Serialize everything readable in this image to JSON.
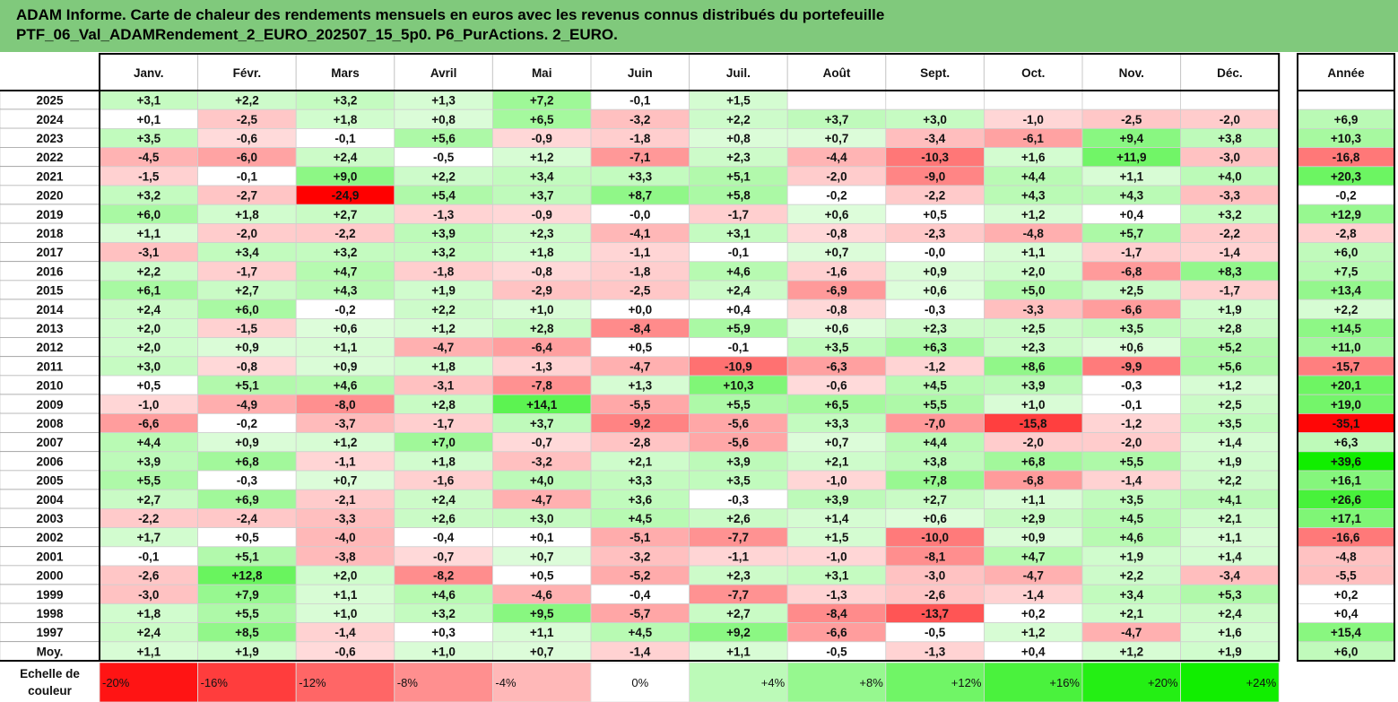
{
  "title_lines": [
    "ADAM Informe. Carte de chaleur des rendements mensuels en euros avec les revenus connus distribués du portefeuille",
    "PTF_06_Val_ADAMRendement_2_EURO_202507_15_5p0. P6_PurActions. 2_EURO."
  ],
  "chart_data": {
    "type": "heatmap",
    "columns": [
      "Janv.",
      "Févr.",
      "Mars",
      "Avril",
      "Mai",
      "Juin",
      "Juil.",
      "Août",
      "Sept.",
      "Oct.",
      "Nov.",
      "Déc."
    ],
    "year_column": "Année",
    "rows": [
      {
        "label": "2025",
        "values": [
          "+3,1",
          "+2,2",
          "+3,2",
          "+1,3",
          "+7,2",
          "-0,1",
          "+1,5",
          "",
          "",
          "",
          "",
          ""
        ],
        "year": ""
      },
      {
        "label": "2024",
        "values": [
          "+0,1",
          "-2,5",
          "+1,8",
          "+0,8",
          "+6,5",
          "-3,2",
          "+2,2",
          "+3,7",
          "+3,0",
          "-1,0",
          "-2,5",
          "-2,0"
        ],
        "year": "+6,9"
      },
      {
        "label": "2023",
        "values": [
          "+3,5",
          "-0,6",
          "-0,1",
          "+5,6",
          "-0,9",
          "-1,8",
          "+0,8",
          "+0,7",
          "-3,4",
          "-6,1",
          "+9,4",
          "+3,8"
        ],
        "year": "+10,3"
      },
      {
        "label": "2022",
        "values": [
          "-4,5",
          "-6,0",
          "+2,4",
          "-0,5",
          "+1,2",
          "-7,1",
          "+2,3",
          "-4,4",
          "-10,3",
          "+1,6",
          "+11,9",
          "-3,0"
        ],
        "year": "-16,8"
      },
      {
        "label": "2021",
        "values": [
          "-1,5",
          "-0,1",
          "+9,0",
          "+2,2",
          "+3,4",
          "+3,3",
          "+5,1",
          "-2,0",
          "-9,0",
          "+4,4",
          "+1,1",
          "+4,0"
        ],
        "year": "+20,3"
      },
      {
        "label": "2020",
        "values": [
          "+3,2",
          "-2,7",
          "-24,9",
          "+5,4",
          "+3,7",
          "+8,7",
          "+5,8",
          "-0,2",
          "-2,2",
          "+4,3",
          "+4,3",
          "-3,3"
        ],
        "year": "-0,2"
      },
      {
        "label": "2019",
        "values": [
          "+6,0",
          "+1,8",
          "+2,7",
          "-1,3",
          "-0,9",
          "-0,0",
          "-1,7",
          "+0,6",
          "+0,5",
          "+1,2",
          "+0,4",
          "+3,2"
        ],
        "year": "+12,9"
      },
      {
        "label": "2018",
        "values": [
          "+1,1",
          "-2,0",
          "-2,2",
          "+3,9",
          "+2,3",
          "-4,1",
          "+3,1",
          "-0,8",
          "-2,3",
          "-4,8",
          "+5,7",
          "-2,2"
        ],
        "year": "-2,8"
      },
      {
        "label": "2017",
        "values": [
          "-3,1",
          "+3,4",
          "+3,2",
          "+3,2",
          "+1,8",
          "-1,1",
          "-0,1",
          "+0,7",
          "-0,0",
          "+1,1",
          "-1,7",
          "-1,4"
        ],
        "year": "+6,0"
      },
      {
        "label": "2016",
        "values": [
          "+2,2",
          "-1,7",
          "+4,7",
          "-1,8",
          "-0,8",
          "-1,8",
          "+4,6",
          "-1,6",
          "+0,9",
          "+2,0",
          "-6,8",
          "+8,3"
        ],
        "year": "+7,5"
      },
      {
        "label": "2015",
        "values": [
          "+6,1",
          "+2,7",
          "+4,3",
          "+1,9",
          "-2,9",
          "-2,5",
          "+2,4",
          "-6,9",
          "+0,6",
          "+5,0",
          "+2,5",
          "-1,7"
        ],
        "year": "+13,4"
      },
      {
        "label": "2014",
        "values": [
          "+2,4",
          "+6,0",
          "-0,2",
          "+2,2",
          "+1,0",
          "+0,0",
          "+0,4",
          "-0,8",
          "-0,3",
          "-3,3",
          "-6,6",
          "+1,9"
        ],
        "year": "+2,2"
      },
      {
        "label": "2013",
        "values": [
          "+2,0",
          "-1,5",
          "+0,6",
          "+1,2",
          "+2,8",
          "-8,4",
          "+5,9",
          "+0,6",
          "+2,3",
          "+2,5",
          "+3,5",
          "+2,8"
        ],
        "year": "+14,5"
      },
      {
        "label": "2012",
        "values": [
          "+2,0",
          "+0,9",
          "+1,1",
          "-4,7",
          "-6,4",
          "+0,5",
          "-0,1",
          "+3,5",
          "+6,3",
          "+2,3",
          "+0,6",
          "+5,2"
        ],
        "year": "+11,0"
      },
      {
        "label": "2011",
        "values": [
          "+3,0",
          "-0,8",
          "+0,9",
          "+1,8",
          "-1,3",
          "-4,7",
          "-10,9",
          "-6,3",
          "-1,2",
          "+8,6",
          "-9,9",
          "+5,6"
        ],
        "year": "-15,7"
      },
      {
        "label": "2010",
        "values": [
          "+0,5",
          "+5,1",
          "+4,6",
          "-3,1",
          "-7,8",
          "+1,3",
          "+10,3",
          "-0,6",
          "+4,5",
          "+3,9",
          "-0,3",
          "+1,2"
        ],
        "year": "+20,1"
      },
      {
        "label": "2009",
        "values": [
          "-1,0",
          "-4,9",
          "-8,0",
          "+2,8",
          "+14,1",
          "-5,5",
          "+5,5",
          "+6,5",
          "+5,5",
          "+1,0",
          "-0,1",
          "+2,5"
        ],
        "year": "+19,0"
      },
      {
        "label": "2008",
        "values": [
          "-6,6",
          "-0,2",
          "-3,7",
          "-1,7",
          "+3,7",
          "-9,2",
          "-5,6",
          "+3,3",
          "-7,0",
          "-15,8",
          "-1,2",
          "+3,5"
        ],
        "year": "-35,1"
      },
      {
        "label": "2007",
        "values": [
          "+4,4",
          "+0,9",
          "+1,2",
          "+7,0",
          "-0,7",
          "-2,8",
          "-5,6",
          "+0,7",
          "+4,4",
          "-2,0",
          "-2,0",
          "+1,4"
        ],
        "year": "+6,3"
      },
      {
        "label": "2006",
        "values": [
          "+3,9",
          "+6,8",
          "-1,1",
          "+1,8",
          "-3,2",
          "+2,1",
          "+3,9",
          "+2,1",
          "+3,8",
          "+6,8",
          "+5,5",
          "+1,9"
        ],
        "year": "+39,6"
      },
      {
        "label": "2005",
        "values": [
          "+5,5",
          "-0,3",
          "+0,7",
          "-1,6",
          "+4,0",
          "+3,3",
          "+3,5",
          "-1,0",
          "+7,8",
          "-6,8",
          "-1,4",
          "+2,2"
        ],
        "year": "+16,1"
      },
      {
        "label": "2004",
        "values": [
          "+2,7",
          "+6,9",
          "-2,1",
          "+2,4",
          "-4,7",
          "+3,6",
          "-0,3",
          "+3,9",
          "+2,7",
          "+1,1",
          "+3,5",
          "+4,1"
        ],
        "year": "+26,6"
      },
      {
        "label": "2003",
        "values": [
          "-2,2",
          "-2,4",
          "-3,3",
          "+2,6",
          "+3,0",
          "+4,5",
          "+2,6",
          "+1,4",
          "+0,6",
          "+2,9",
          "+4,5",
          "+2,1"
        ],
        "year": "+17,1"
      },
      {
        "label": "2002",
        "values": [
          "+1,7",
          "+0,5",
          "-4,0",
          "-0,4",
          "+0,1",
          "-5,1",
          "-7,7",
          "+1,5",
          "-10,0",
          "+0,9",
          "+4,6",
          "+1,1"
        ],
        "year": "-16,6"
      },
      {
        "label": "2001",
        "values": [
          "-0,1",
          "+5,1",
          "-3,8",
          "-0,7",
          "+0,7",
          "-3,2",
          "-1,1",
          "-1,0",
          "-8,1",
          "+4,7",
          "+1,9",
          "+1,4"
        ],
        "year": "-4,8"
      },
      {
        "label": "2000",
        "values": [
          "-2,6",
          "+12,8",
          "+2,0",
          "-8,2",
          "+0,5",
          "-5,2",
          "+2,3",
          "+3,1",
          "-3,0",
          "-4,7",
          "+2,2",
          "-3,4"
        ],
        "year": "-5,5"
      },
      {
        "label": "1999",
        "values": [
          "-3,0",
          "+7,9",
          "+1,1",
          "+4,6",
          "-4,6",
          "-0,4",
          "-7,7",
          "-1,3",
          "-2,6",
          "-1,4",
          "+3,4",
          "+5,3"
        ],
        "year": "+0,2"
      },
      {
        "label": "1998",
        "values": [
          "+1,8",
          "+5,5",
          "+1,0",
          "+3,2",
          "+9,5",
          "-5,7",
          "+2,7",
          "-8,4",
          "-13,7",
          "+0,2",
          "+2,1",
          "+2,4"
        ],
        "year": "+0,4"
      },
      {
        "label": "1997",
        "values": [
          "+2,4",
          "+8,5",
          "-1,4",
          "+0,3",
          "+1,1",
          "+4,5",
          "+9,2",
          "-6,6",
          "-0,5",
          "+1,2",
          "-4,7",
          "+1,6"
        ],
        "year": "+15,4"
      },
      {
        "label": "Moy.",
        "values": [
          "+1,1",
          "+1,9",
          "-0,6",
          "+1,0",
          "+0,7",
          "-1,4",
          "+1,1",
          "-0,5",
          "-1,3",
          "+0,4",
          "+1,2",
          "+1,9"
        ],
        "year": "+6,0"
      }
    ],
    "scale_label_lines": [
      "Echelle de",
      "couleur"
    ],
    "scale": [
      {
        "label": "-20%",
        "value": -20
      },
      {
        "label": "-16%",
        "value": -16
      },
      {
        "label": "-12%",
        "value": -12
      },
      {
        "label": "-8%",
        "value": -8
      },
      {
        "label": "-4%",
        "value": -4
      },
      {
        "label": "0%",
        "value": 0
      },
      {
        "label": "+4%",
        "value": 4
      },
      {
        "label": "+8%",
        "value": 8
      },
      {
        "label": "+12%",
        "value": 12
      },
      {
        "label": "+16%",
        "value": 16
      },
      {
        "label": "+20%",
        "value": 20
      },
      {
        "label": "+24%",
        "value": 24
      }
    ],
    "colors": {
      "negative_max": "#ff0000",
      "neutral": "#ffffff",
      "positive_max": "#11ee00",
      "title_band": "#80c97c"
    }
  }
}
